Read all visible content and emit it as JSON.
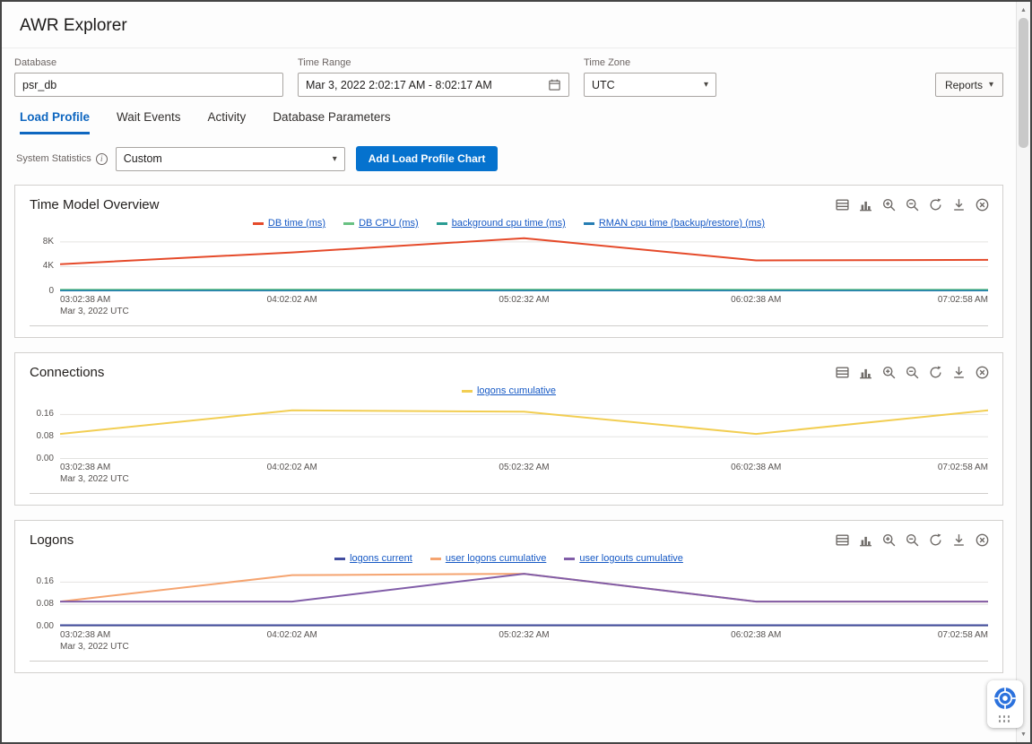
{
  "window": {
    "title": "AWR Explorer"
  },
  "icons": {
    "caret_down": "▾",
    "scroll_up": "▲",
    "scroll_down": "▼",
    "info": "i"
  },
  "toolbar": {
    "database": {
      "label": "Database",
      "value": "psr_db"
    },
    "time_range": {
      "label": "Time Range",
      "value": "Mar 3, 2022 2:02:17 AM - 8:02:17 AM"
    },
    "time_zone": {
      "label": "Time Zone",
      "value": "UTC"
    },
    "reports_label": "Reports"
  },
  "tabs": [
    {
      "label": "Load Profile",
      "active": true
    },
    {
      "label": "Wait Events",
      "active": false
    },
    {
      "label": "Activity",
      "active": false
    },
    {
      "label": "Database Parameters",
      "active": false
    }
  ],
  "controls": {
    "system_statistics_label": "System Statistics",
    "statistic_select_value": "Custom",
    "add_chart_button_label": "Add Load Profile Chart"
  },
  "panel_icons": [
    "table-view",
    "bar-chart",
    "zoom-in",
    "zoom-out",
    "reset",
    "download",
    "remove"
  ],
  "colors": {
    "accent": "#0572ce",
    "tab_active": "#0f67c0",
    "legend_link": "#1659c5"
  },
  "chart_data": [
    {
      "type": "line",
      "title": "Time Model Overview",
      "legend_position": "top",
      "grid": true,
      "x": [
        "03:02:38 AM",
        "04:02:02 AM",
        "05:02:32 AM",
        "06:02:38 AM",
        "07:02:58 AM"
      ],
      "x_caption": "Mar 3, 2022 UTC",
      "ylim": [
        0,
        9000
      ],
      "yticks": [
        {
          "label": "8K",
          "value": 8000
        },
        {
          "label": "4K",
          "value": 4000
        },
        {
          "label": "0",
          "value": 0
        }
      ],
      "series": [
        {
          "name": "DB time (ms)",
          "color": "#e54a2a",
          "values": [
            4400,
            6300,
            8600,
            5000,
            5100
          ]
        },
        {
          "name": "DB CPU (ms)",
          "color": "#68c182",
          "values": [
            260,
            265,
            275,
            260,
            260
          ]
        },
        {
          "name": "background cpu time (ms)",
          "color": "#299c93",
          "values": [
            120,
            120,
            125,
            120,
            120
          ]
        },
        {
          "name": "RMAN cpu time (backup/restore) (ms)",
          "color": "#267db3",
          "values": [
            30,
            30,
            30,
            30,
            30
          ]
        }
      ]
    },
    {
      "type": "line",
      "title": "Connections",
      "legend_position": "top",
      "grid": true,
      "x": [
        "03:02:38 AM",
        "04:02:02 AM",
        "05:02:32 AM",
        "06:02:38 AM",
        "07:02:58 AM"
      ],
      "x_caption": "Mar 3, 2022 UTC",
      "ylim": [
        0,
        0.2
      ],
      "yticks": [
        {
          "label": "0.16",
          "value": 0.16
        },
        {
          "label": "0.08",
          "value": 0.08
        },
        {
          "label": "0.00",
          "value": 0
        }
      ],
      "series": [
        {
          "name": "logons cumulative",
          "color": "#f2ce53",
          "values": [
            0.09,
            0.175,
            0.17,
            0.09,
            0.175
          ]
        }
      ]
    },
    {
      "type": "line",
      "title": "Logons",
      "legend_position": "top",
      "grid": true,
      "x": [
        "03:02:38 AM",
        "04:02:02 AM",
        "05:02:32 AM",
        "06:02:38 AM",
        "07:02:58 AM"
      ],
      "x_caption": "Mar 3, 2022 UTC",
      "ylim": [
        0,
        0.2
      ],
      "yticks": [
        {
          "label": "0.16",
          "value": 0.16
        },
        {
          "label": "0.08",
          "value": 0.08
        },
        {
          "label": "0.00",
          "value": 0
        }
      ],
      "series": [
        {
          "name": "logons current",
          "color": "#424d9f",
          "values": [
            0.005,
            0.005,
            0.005,
            0.005,
            0.005
          ]
        },
        {
          "name": "user logons cumulative",
          "color": "#f5a470",
          "values": [
            0.09,
            0.185,
            0.19,
            0.09,
            0.09
          ]
        },
        {
          "name": "user logouts cumulative",
          "color": "#815da8",
          "values": [
            0.09,
            0.09,
            0.19,
            0.09,
            0.09
          ]
        }
      ]
    }
  ]
}
